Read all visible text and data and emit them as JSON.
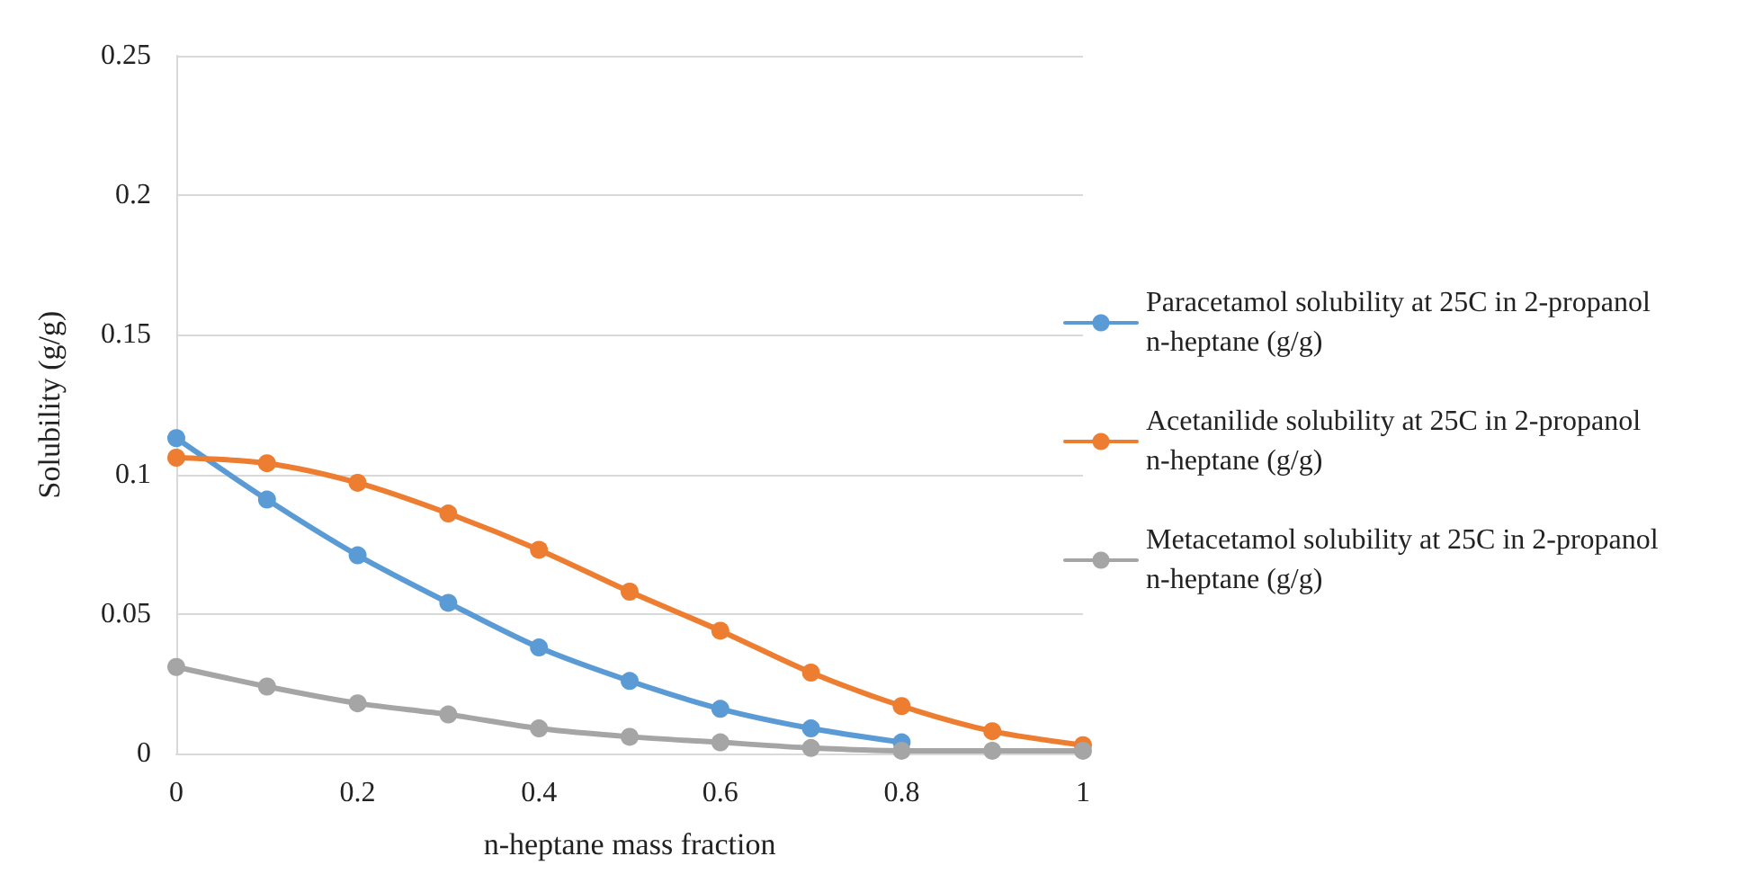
{
  "chart_data": {
    "type": "line",
    "xlabel": "n-heptane mass fraction",
    "ylabel": "Solubility (g/g)",
    "x": [
      0,
      0.1,
      0.2,
      0.3,
      0.4,
      0.5,
      0.6,
      0.7,
      0.8,
      0.9,
      1
    ],
    "series": [
      {
        "name": "Paracetamol solubility at 25C in 2-propanol n-heptane (g/g)",
        "color": "#5b9bd5",
        "values": [
          0.113,
          0.091,
          0.071,
          0.054,
          0.038,
          0.026,
          0.016,
          0.009,
          0.004,
          null,
          null
        ]
      },
      {
        "name": "Acetanilide solubility at 25C in 2-propanol n-heptane (g/g)",
        "color": "#ed7d31",
        "values": [
          0.106,
          0.104,
          0.097,
          0.086,
          0.073,
          0.058,
          0.044,
          0.029,
          0.017,
          0.008,
          0.003
        ]
      },
      {
        "name": "Metacetamol solubility at 25C in 2-propanol n-heptane (g/g)",
        "color": "#a5a5a5",
        "values": [
          0.031,
          0.024,
          0.018,
          0.014,
          0.009,
          0.006,
          0.004,
          0.002,
          0.001,
          0.001,
          0.001
        ]
      }
    ],
    "xlim": [
      0,
      1
    ],
    "xticks": [
      0,
      0.2,
      0.4,
      0.6,
      0.8,
      1
    ],
    "ylim": [
      0,
      0.25
    ],
    "yticks": [
      0,
      0.05,
      0.1,
      0.15,
      0.2,
      0.25
    ],
    "grid": "y",
    "legend": "right",
    "marker": "circle",
    "line_style": "solid"
  }
}
